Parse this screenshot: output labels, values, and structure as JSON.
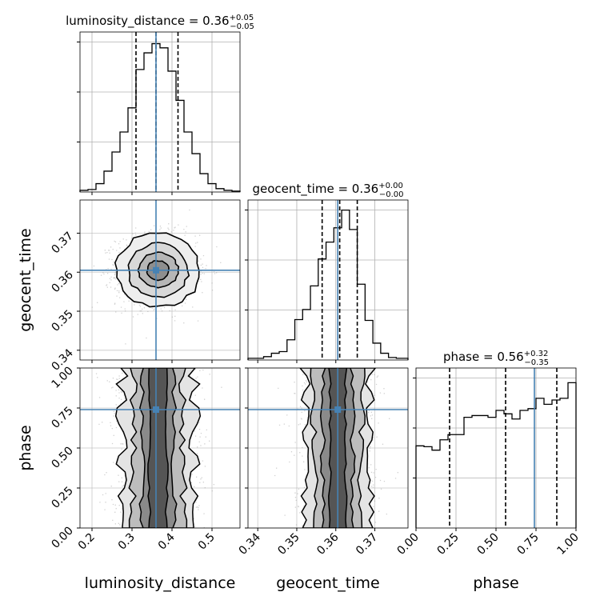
{
  "chart_data": {
    "type": "corner",
    "parameters": [
      "luminosity_distance",
      "geocent_time",
      "phase"
    ],
    "truths": {
      "luminosity_distance": 0.36,
      "geocent_time": 0.3605,
      "phase": 0.74
    },
    "truth_color": "#4682b4",
    "titles": [
      {
        "param": "luminosity_distance",
        "median": "0.36",
        "plus": "+0.05",
        "minus": "−0.05"
      },
      {
        "param": "geocent_time",
        "median": "0.36",
        "plus": "+0.00",
        "minus": "−0.00"
      },
      {
        "param": "phase",
        "median": "0.56",
        "plus": "+0.32",
        "minus": "−0.35"
      }
    ],
    "ranges": {
      "luminosity_distance": [
        0.17,
        0.57
      ],
      "geocent_time": [
        0.3375,
        0.3785
      ],
      "phase": [
        0.0,
        1.0
      ]
    },
    "ticks": {
      "luminosity_distance": {
        "values": [
          0.2,
          0.3,
          0.4,
          0.5
        ],
        "labels": [
          "0.2",
          "0.3",
          "0.4",
          "0.5"
        ]
      },
      "geocent_time": {
        "values": [
          0.34,
          0.35,
          0.36,
          0.37
        ],
        "labels": [
          "0.34",
          "0.35",
          "0.36",
          "0.37"
        ]
      },
      "phase": {
        "values": [
          0.0,
          0.25,
          0.5,
          0.75,
          1.0
        ],
        "labels": [
          "0.00",
          "0.25",
          "0.50",
          "0.75",
          "1.00"
        ]
      }
    },
    "histograms": {
      "luminosity_distance": {
        "edges": [
          0.17,
          0.19,
          0.21,
          0.23,
          0.25,
          0.27,
          0.29,
          0.31,
          0.33,
          0.35,
          0.37,
          0.39,
          0.41,
          0.43,
          0.45,
          0.47,
          0.49,
          0.51,
          0.53,
          0.55,
          0.57
        ],
        "counts": [
          2,
          3,
          10,
          25,
          48,
          72,
          101,
          147,
          167,
          178,
          173,
          145,
          110,
          72,
          46,
          22,
          10,
          4,
          2,
          1
        ],
        "quantiles": [
          0.31,
          0.36,
          0.415
        ],
        "ymax": 192
      },
      "geocent_time": {
        "edges": [
          0.3375,
          0.3395,
          0.3415,
          0.3435,
          0.3455,
          0.3475,
          0.3495,
          0.3515,
          0.3535,
          0.3555,
          0.3575,
          0.3595,
          0.3615,
          0.3635,
          0.3655,
          0.3675,
          0.3695,
          0.3715,
          0.3735,
          0.3755,
          0.3785
        ],
        "counts": [
          2,
          2,
          4,
          8,
          10,
          24,
          48,
          60,
          88,
          120,
          140,
          157,
          178,
          155,
          90,
          47,
          20,
          8,
          3,
          2
        ],
        "quantiles": [
          0.3565,
          0.361,
          0.3655
        ],
        "ymax": 190
      },
      "phase": {
        "edges": [
          0.0,
          0.05,
          0.1,
          0.15,
          0.2,
          0.25,
          0.3,
          0.35,
          0.4,
          0.45,
          0.5,
          0.55,
          0.6,
          0.65,
          0.7,
          0.75,
          0.8,
          0.85,
          0.9,
          0.95,
          1.0
        ],
        "counts": [
          95,
          94,
          90,
          102,
          108,
          108,
          128,
          130,
          130,
          128,
          136,
          132,
          126,
          136,
          138,
          150,
          143,
          148,
          150,
          168
        ],
        "quantiles": [
          0.21,
          0.56,
          0.88
        ],
        "ymax": 185
      }
    },
    "xlabels": [
      "luminosity_distance",
      "geocent_time",
      "phase"
    ],
    "ylabels": [
      "geocent_time",
      "phase"
    ]
  }
}
